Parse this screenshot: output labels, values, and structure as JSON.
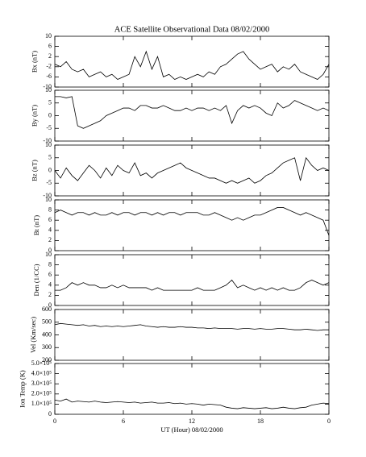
{
  "chart_data": [
    {
      "type": "line",
      "title": "ACE Satellite Observational Data   08/02/2000",
      "ylabel": "Bx (nT)",
      "color": "#000000",
      "x": [
        0,
        0.5,
        1,
        1.5,
        2,
        2.5,
        3,
        3.5,
        4,
        4.5,
        5,
        5.5,
        6,
        6.5,
        7,
        7.5,
        8,
        8.5,
        9,
        9.5,
        10,
        10.5,
        11,
        11.5,
        12,
        12.5,
        13,
        13.5,
        14,
        14.5,
        15,
        15.5,
        16,
        16.5,
        17,
        17.5,
        18,
        18.5,
        19,
        19.5,
        20,
        20.5,
        21,
        21.5,
        22,
        22.5,
        23,
        23.5,
        24
      ],
      "values": [
        -1,
        -2,
        0,
        -3,
        -4,
        -3,
        -6,
        -5,
        -4,
        -6,
        -5,
        -7,
        -6,
        -5,
        2,
        -2,
        4,
        -3,
        2,
        -6,
        -5,
        -7,
        -6,
        -7,
        -6,
        -5,
        -6,
        -4,
        -5,
        -2,
        -1,
        1,
        3,
        4,
        1,
        -1,
        -3,
        -2,
        -1,
        -4,
        -2,
        -3,
        -1,
        -4,
        -5,
        -6,
        -7,
        -5,
        -1
      ],
      "xlim": [
        0,
        24
      ],
      "ylim": [
        -10,
        10
      ],
      "yticks": [
        -10,
        -6,
        -2,
        2,
        6,
        10
      ]
    },
    {
      "type": "line",
      "ylabel": "By (nT)",
      "color": "#000000",
      "x": [
        0,
        0.5,
        1,
        1.5,
        2,
        2.5,
        3,
        3.5,
        4,
        4.5,
        5,
        5.5,
        6,
        6.5,
        7,
        7.5,
        8,
        8.5,
        9,
        9.5,
        10,
        10.5,
        11,
        11.5,
        12,
        12.5,
        13,
        13.5,
        14,
        14.5,
        15,
        15.5,
        16,
        16.5,
        17,
        17.5,
        18,
        18.5,
        19,
        19.5,
        20,
        20.5,
        21,
        21.5,
        22,
        22.5,
        23,
        23.5,
        24
      ],
      "values": [
        7.5,
        7.5,
        7,
        7.5,
        -4,
        -5,
        -4,
        -3,
        -2,
        0,
        1,
        2,
        3,
        3,
        2,
        4,
        4,
        3,
        3,
        4,
        3,
        2,
        2,
        3,
        2,
        3,
        3,
        2,
        3,
        2,
        4,
        -3,
        2,
        4,
        3,
        4,
        3,
        1,
        0,
        5,
        3,
        4,
        6,
        5,
        4,
        3,
        2,
        3,
        2
      ],
      "xlim": [
        0,
        24
      ],
      "ylim": [
        -10,
        10
      ],
      "yticks": [
        -10,
        -5,
        0,
        5,
        10
      ]
    },
    {
      "type": "line",
      "ylabel": "Bz (nT)",
      "color": "#000000",
      "x": [
        0,
        0.5,
        1,
        1.5,
        2,
        2.5,
        3,
        3.5,
        4,
        4.5,
        5,
        5.5,
        6,
        6.5,
        7,
        7.5,
        8,
        8.5,
        9,
        9.5,
        10,
        10.5,
        11,
        11.5,
        12,
        12.5,
        13,
        13.5,
        14,
        14.5,
        15,
        15.5,
        16,
        16.5,
        17,
        17.5,
        18,
        18.5,
        19,
        19.5,
        20,
        20.5,
        21,
        21.5,
        22,
        22.5,
        23,
        23.5,
        24
      ],
      "values": [
        0,
        -3,
        1,
        -2,
        -4,
        -1,
        2,
        0,
        -3,
        1,
        -2,
        2,
        0,
        -1,
        3,
        -2,
        -1,
        -3,
        -1,
        0,
        1,
        2,
        3,
        1,
        0,
        -1,
        -2,
        -3,
        -3,
        -4,
        -5,
        -4,
        -5,
        -4,
        -3,
        -5,
        -4,
        -2,
        -1,
        1,
        3,
        4,
        5,
        -4,
        5,
        2,
        0,
        1,
        0
      ],
      "xlim": [
        0,
        24
      ],
      "ylim": [
        -10,
        10
      ],
      "yticks": [
        -10,
        -5,
        0,
        5,
        10
      ]
    },
    {
      "type": "line",
      "ylabel": "Bt (nT)",
      "color": "#000000",
      "x": [
        0,
        0.5,
        1,
        1.5,
        2,
        2.5,
        3,
        3.5,
        4,
        4.5,
        5,
        5.5,
        6,
        6.5,
        7,
        7.5,
        8,
        8.5,
        9,
        9.5,
        10,
        10.5,
        11,
        11.5,
        12,
        12.5,
        13,
        13.5,
        14,
        14.5,
        15,
        15.5,
        16,
        16.5,
        17,
        17.5,
        18,
        18.5,
        19,
        19.5,
        20,
        20.5,
        21,
        21.5,
        22,
        22.5,
        23,
        23.5,
        24
      ],
      "values": [
        7.5,
        8,
        7.5,
        7,
        7.5,
        7.5,
        7,
        7.5,
        7,
        7,
        7.5,
        7,
        7.5,
        7.5,
        7,
        7.5,
        7.5,
        7,
        7.5,
        7,
        7.5,
        7.5,
        7,
        7.5,
        7.5,
        7.5,
        7,
        7,
        7.5,
        7,
        6.5,
        6,
        6.5,
        6,
        6.5,
        7,
        7,
        7.5,
        8,
        8.5,
        8.5,
        8,
        7.5,
        7,
        7.5,
        7,
        6.5,
        6,
        3
      ],
      "xlim": [
        0,
        24
      ],
      "ylim": [
        0,
        10
      ],
      "yticks": [
        0,
        2,
        4,
        6,
        8,
        10
      ]
    },
    {
      "type": "line",
      "ylabel": "Den (1/CC)",
      "color": "#000000",
      "x": [
        0,
        0.5,
        1,
        1.5,
        2,
        2.5,
        3,
        3.5,
        4,
        4.5,
        5,
        5.5,
        6,
        6.5,
        7,
        7.5,
        8,
        8.5,
        9,
        9.5,
        10,
        10.5,
        11,
        11.5,
        12,
        12.5,
        13,
        13.5,
        14,
        14.5,
        15,
        15.5,
        16,
        16.5,
        17,
        17.5,
        18,
        18.5,
        19,
        19.5,
        20,
        20.5,
        21,
        21.5,
        22,
        22.5,
        23,
        23.5,
        24
      ],
      "values": [
        3,
        3,
        3.5,
        4.5,
        4,
        4.5,
        4,
        4,
        3.5,
        3.5,
        4,
        3.5,
        4,
        3.5,
        3.5,
        3.5,
        3.5,
        3,
        3.5,
        3,
        3,
        3,
        3,
        3,
        3,
        3.5,
        3,
        3,
        3,
        3.5,
        4,
        5,
        3.5,
        4,
        3.5,
        3,
        3.5,
        3,
        3.5,
        3,
        3.5,
        3,
        3,
        3.5,
        4.5,
        5,
        4.5,
        4,
        4.5
      ],
      "xlim": [
        0,
        24
      ],
      "ylim": [
        0,
        10
      ],
      "yticks": [
        0,
        2,
        4,
        6,
        8,
        10
      ]
    },
    {
      "type": "line",
      "ylabel": "Vel (Km/sec)",
      "color": "#000000",
      "x": [
        0,
        0.5,
        1,
        1.5,
        2,
        2.5,
        3,
        3.5,
        4,
        4.5,
        5,
        5.5,
        6,
        6.5,
        7,
        7.5,
        8,
        8.5,
        9,
        9.5,
        10,
        10.5,
        11,
        11.5,
        12,
        12.5,
        13,
        13.5,
        14,
        14.5,
        15,
        15.5,
        16,
        16.5,
        17,
        17.5,
        18,
        18.5,
        19,
        19.5,
        20,
        20.5,
        21,
        21.5,
        22,
        22.5,
        23,
        23.5,
        24
      ],
      "values": [
        480,
        490,
        485,
        480,
        475,
        480,
        470,
        475,
        465,
        470,
        465,
        470,
        465,
        470,
        475,
        480,
        470,
        465,
        460,
        465,
        460,
        460,
        465,
        460,
        460,
        455,
        455,
        450,
        455,
        450,
        450,
        450,
        445,
        450,
        450,
        445,
        450,
        445,
        445,
        450,
        450,
        445,
        440,
        440,
        445,
        440,
        435,
        440,
        440
      ],
      "xlim": [
        0,
        24
      ],
      "ylim": [
        200,
        600
      ],
      "yticks": [
        200,
        300,
        400,
        500,
        600
      ]
    },
    {
      "type": "line",
      "ylabel": "Ion Temp (K)",
      "xlabel": "UT (Hour)   08/02/2000",
      "color": "#000000",
      "x": [
        0,
        0.5,
        1,
        1.5,
        2,
        2.5,
        3,
        3.5,
        4,
        4.5,
        5,
        5.5,
        6,
        6.5,
        7,
        7.5,
        8,
        8.5,
        9,
        9.5,
        10,
        10.5,
        11,
        11.5,
        12,
        12.5,
        13,
        13.5,
        14,
        14.5,
        15,
        15.5,
        16,
        16.5,
        17,
        17.5,
        18,
        18.5,
        19,
        19.5,
        20,
        20.5,
        21,
        21.5,
        22,
        22.5,
        23,
        23.5,
        24
      ],
      "values": [
        140000,
        130000,
        150000,
        120000,
        130000,
        125000,
        120000,
        130000,
        120000,
        115000,
        120000,
        125000,
        120000,
        115000,
        120000,
        110000,
        115000,
        120000,
        110000,
        110000,
        115000,
        105000,
        110000,
        100000,
        105000,
        100000,
        90000,
        100000,
        95000,
        90000,
        70000,
        60000,
        55000,
        65000,
        60000,
        55000,
        60000,
        65000,
        55000,
        60000,
        70000,
        60000,
        55000,
        65000,
        70000,
        90000,
        100000,
        110000,
        105000
      ],
      "xlim": [
        0,
        24
      ],
      "xticks": [
        0,
        6,
        12,
        18,
        {
          "value": 24,
          "label": "0"
        }
      ],
      "ylim": [
        0,
        500000
      ],
      "yticks": [
        0,
        {
          "value": 100000,
          "label": "1.0×10⁵"
        },
        {
          "value": 200000,
          "label": "2.0×10⁵"
        },
        {
          "value": 300000,
          "label": "3.0×10⁵"
        },
        {
          "value": 400000,
          "label": "4.0×10⁵"
        },
        {
          "value": 500000,
          "label": "5.0×10⁵"
        }
      ]
    }
  ]
}
